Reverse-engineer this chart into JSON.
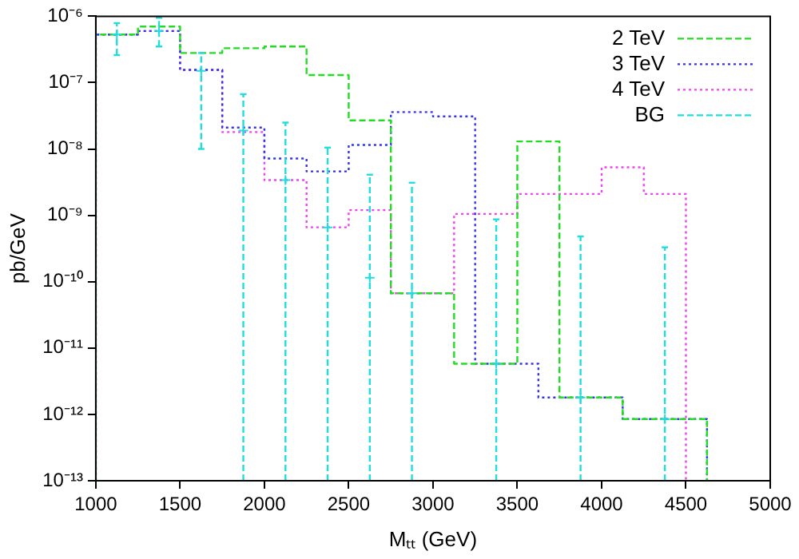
{
  "chart_data": {
    "type": "histogram",
    "xlabel": "Mₜₜ (GeV)",
    "ylabel": "pb/GeV",
    "xlim": [
      1000,
      5000
    ],
    "xticks": [
      1000,
      1500,
      2000,
      2500,
      3000,
      3500,
      4000,
      4500,
      5000
    ],
    "ylim": [
      1e-13,
      1e-06
    ],
    "yticks": [
      {
        "value": 1e-13,
        "label": "10⁻¹³"
      },
      {
        "value": 1e-12,
        "label": "10⁻¹²"
      },
      {
        "value": 1e-11,
        "label": "10⁻¹¹"
      },
      {
        "value": 1e-10,
        "label": "10⁻¹⁰"
      },
      {
        "value": 1e-09,
        "label": "10⁻⁹"
      },
      {
        "value": 1e-08,
        "label": "10⁻⁸"
      },
      {
        "value": 1e-07,
        "label": "10⁻⁷"
      },
      {
        "value": 1e-06,
        "label": "10⁻⁶"
      }
    ],
    "log": "y",
    "grid": false,
    "legend": "top right",
    "series": [
      {
        "name": "2 TeV",
        "color": "#22dd22",
        "line_style": "dashed",
        "bins": [
          1000,
          1250,
          1500,
          1750,
          2000,
          2250,
          2500,
          2750,
          3125,
          3500,
          3750,
          4125,
          4625
        ],
        "values": [
          5.3e-07,
          7e-07,
          2.8e-07,
          3.3e-07,
          3.5e-07,
          1.3e-07,
          2.7e-08,
          6.7e-11,
          5.8e-12,
          1.3e-08,
          1.8e-12,
          8.5e-13
        ]
      },
      {
        "name": "3 TeV",
        "color": "#3333ee",
        "line_style": "dotted",
        "bins": [
          1000,
          1250,
          1500,
          1750,
          2000,
          2250,
          2500,
          2750,
          3000,
          3250,
          3625,
          4125,
          4625
        ],
        "values": [
          5.3e-07,
          6e-07,
          1.56e-07,
          2.1e-08,
          7.2e-09,
          4.6e-09,
          1.15e-08,
          3.6e-08,
          3.1e-08,
          5.8e-12,
          1.8e-12,
          8.5e-13
        ]
      },
      {
        "name": "4 TeV",
        "color": "#ee44ee",
        "line_style": "dotted",
        "bins": [
          1000,
          1250,
          1500,
          1750,
          2000,
          2250,
          2500,
          2750,
          3125,
          3500,
          4000,
          4250,
          4500
        ],
        "values": [
          5.3e-07,
          6e-07,
          1.56e-07,
          1.8e-08,
          3.4e-09,
          6.6e-10,
          1.2e-09,
          6.7e-11,
          1.05e-09,
          2.1e-09,
          5.3e-09,
          2.1e-09
        ]
      },
      {
        "name": "BG",
        "type": "scatter",
        "color": "#22dddd",
        "line_style": "dashed",
        "marker": "cross",
        "x": [
          1125,
          1375,
          1625,
          1875,
          2125,
          2375,
          2625,
          2875,
          3375,
          3875,
          4375
        ],
        "values": [
          5.3e-07,
          6e-07,
          1.5e-07,
          1.9e-08,
          3.4e-09,
          6.6e-10,
          1.15e-10,
          6.7e-11,
          5.8e-12,
          1.8e-12,
          8.5e-13
        ],
        "errors": [
          [
            2.6e-07,
            7.9e-07
          ],
          [
            3.5e-07,
            9.5e-07
          ],
          [
            1e-08,
            2.8e-07
          ],
          [
            1e-13,
            6.7e-08
          ],
          [
            1e-13,
            2.5e-08
          ],
          [
            1e-13,
            1.05e-08
          ],
          [
            1e-13,
            4.1e-09
          ],
          [
            1e-13,
            3.1e-09
          ],
          [
            1e-13,
            8.7e-10
          ],
          [
            1e-13,
            4.8e-10
          ],
          [
            1e-13,
            3.3e-10
          ]
        ]
      }
    ]
  }
}
